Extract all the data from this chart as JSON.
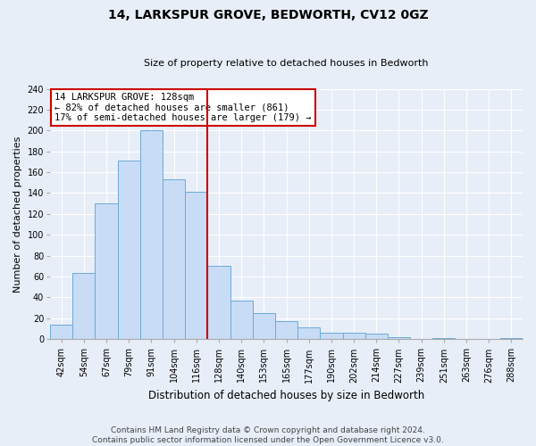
{
  "title": "14, LARKSPUR GROVE, BEDWORTH, CV12 0GZ",
  "subtitle": "Size of property relative to detached houses in Bedworth",
  "xlabel": "Distribution of detached houses by size in Bedworth",
  "ylabel": "Number of detached properties",
  "bar_labels": [
    "42sqm",
    "54sqm",
    "67sqm",
    "79sqm",
    "91sqm",
    "104sqm",
    "116sqm",
    "128sqm",
    "140sqm",
    "153sqm",
    "165sqm",
    "177sqm",
    "190sqm",
    "202sqm",
    "214sqm",
    "227sqm",
    "239sqm",
    "251sqm",
    "263sqm",
    "276sqm",
    "288sqm"
  ],
  "bar_values": [
    14,
    63,
    130,
    171,
    200,
    153,
    141,
    70,
    37,
    25,
    17,
    11,
    6,
    6,
    5,
    2,
    0,
    1,
    0,
    0,
    1
  ],
  "bar_color": "#c9dcf5",
  "bar_edge_color": "#6baad8",
  "vline_index": 7,
  "vline_color": "#cc0000",
  "ylim": [
    0,
    240
  ],
  "yticks": [
    0,
    20,
    40,
    60,
    80,
    100,
    120,
    140,
    160,
    180,
    200,
    220,
    240
  ],
  "annotation_line1": "14 LARKSPUR GROVE: 128sqm",
  "annotation_line2": "← 82% of detached houses are smaller (861)",
  "annotation_line3": "17% of semi-detached houses are larger (179) →",
  "annotation_box_color": "#cc0000",
  "footer_line1": "Contains HM Land Registry data © Crown copyright and database right 2024.",
  "footer_line2": "Contains public sector information licensed under the Open Government Licence v3.0.",
  "fig_background": "#e8eef8",
  "plot_background": "#e8eef8",
  "grid_color": "#ffffff",
  "title_fontsize": 10,
  "subtitle_fontsize": 8,
  "ylabel_fontsize": 8,
  "xlabel_fontsize": 8.5,
  "tick_fontsize": 7,
  "annotation_fontsize": 7.5,
  "footer_fontsize": 6.5
}
